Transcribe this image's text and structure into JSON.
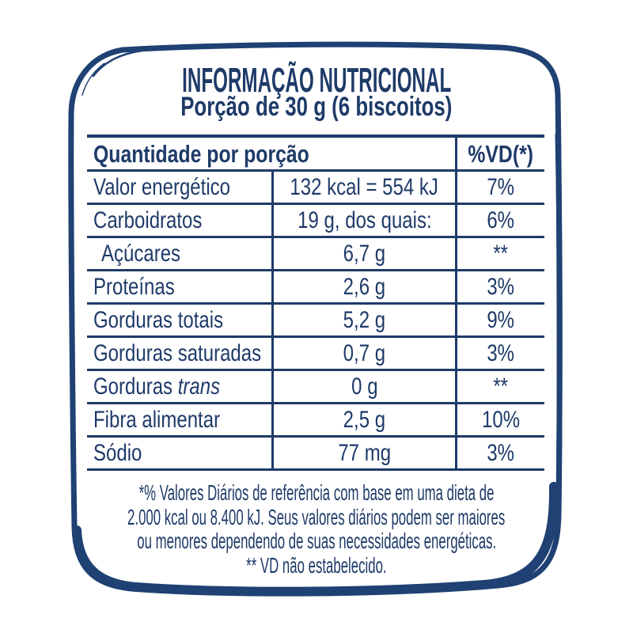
{
  "colors": {
    "ink": "#1e3a68",
    "border": "#1f4173"
  },
  "header": {
    "title": "INFORMAÇÃO NUTRICIONAL",
    "subtitle": "Porção de 30 g (6 biscoitos)"
  },
  "table": {
    "header": {
      "col_quantity": "Quantidade por porção",
      "col_vd": "%VD(*)"
    },
    "rows": [
      {
        "name": "Valor energético",
        "value": "132 kcal = 554 kJ",
        "vd": "7%"
      },
      {
        "name": "Carboidratos",
        "value": "19 g, dos quais:",
        "vd": "6%"
      },
      {
        "name": "Açúcares",
        "indent": true,
        "value": "6,7 g",
        "vd": "**"
      },
      {
        "name": "Proteínas",
        "value": "2,6 g",
        "vd": "3%"
      },
      {
        "name": "Gorduras totais",
        "value": "5,2 g",
        "vd": "9%"
      },
      {
        "name": "Gorduras saturadas",
        "value": "0,7 g",
        "vd": "3%"
      },
      {
        "name": "Gorduras",
        "name_italic": "trans",
        "value": "0 g",
        "vd": "**"
      },
      {
        "name": "Fibra alimentar",
        "value": "2,5 g",
        "vd": "10%"
      },
      {
        "name": "Sódio",
        "value": "77 mg",
        "vd": "3%"
      }
    ]
  },
  "footnotes": {
    "lines": [
      "*% Valores Diários de referência com base em uma dieta de",
      "2.000 kcal ou 8.400 kJ. Seus valores diários podem ser maiores",
      "ou menores dependendo de suas necessidades energéticas.",
      "** VD não estabelecido."
    ]
  }
}
